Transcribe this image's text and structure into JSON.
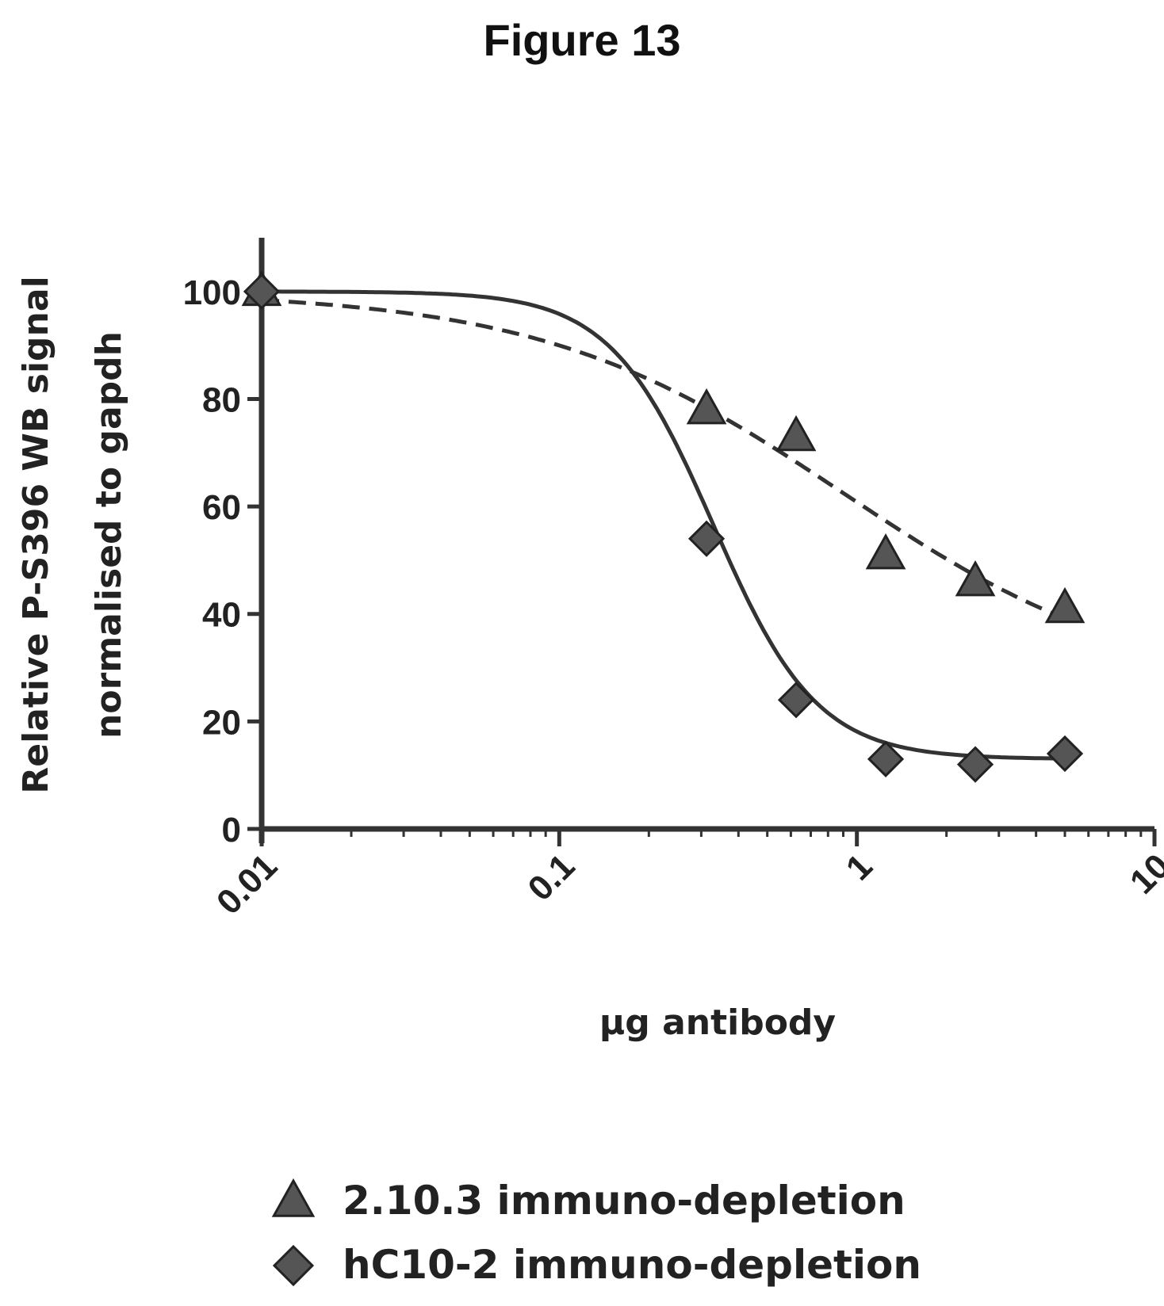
{
  "figure": {
    "title": "Figure 13"
  },
  "chart_data": {
    "type": "scatter",
    "xlabel": "µg antibody",
    "ylabel_lines": [
      "Relative P-S396 WB signal",
      "normalised to gapdh"
    ],
    "xscale": "log",
    "xlim": [
      0.01,
      10
    ],
    "ylim": [
      0,
      110
    ],
    "x_ticks": [
      "0.01",
      "0.1",
      "1",
      "10"
    ],
    "y_ticks": [
      "0",
      "20",
      "40",
      "60",
      "80",
      "100"
    ],
    "grid": false,
    "legend_position": "bottom",
    "series": [
      {
        "name": "2.10.3 immuno-depletion",
        "marker": "triangle-icon",
        "line": "dashed",
        "x": [
          0.01,
          0.3125,
          0.625,
          1.25,
          2.5,
          5
        ],
        "y": [
          100,
          78,
          73,
          51,
          46,
          41
        ],
        "fit": {
          "top": 100,
          "bottom": 25,
          "ec50": 0.9,
          "hill": 0.85
        }
      },
      {
        "name": "hC10-2 immuno-depletion",
        "marker": "diamond-icon",
        "line": "solid",
        "x": [
          0.01,
          0.3125,
          0.625,
          1.25,
          2.5,
          5
        ],
        "y": [
          100,
          54,
          24,
          13,
          12,
          14
        ],
        "fit": {
          "top": 100,
          "bottom": 13,
          "ec50": 0.33,
          "hill": 2.5
        }
      }
    ]
  }
}
